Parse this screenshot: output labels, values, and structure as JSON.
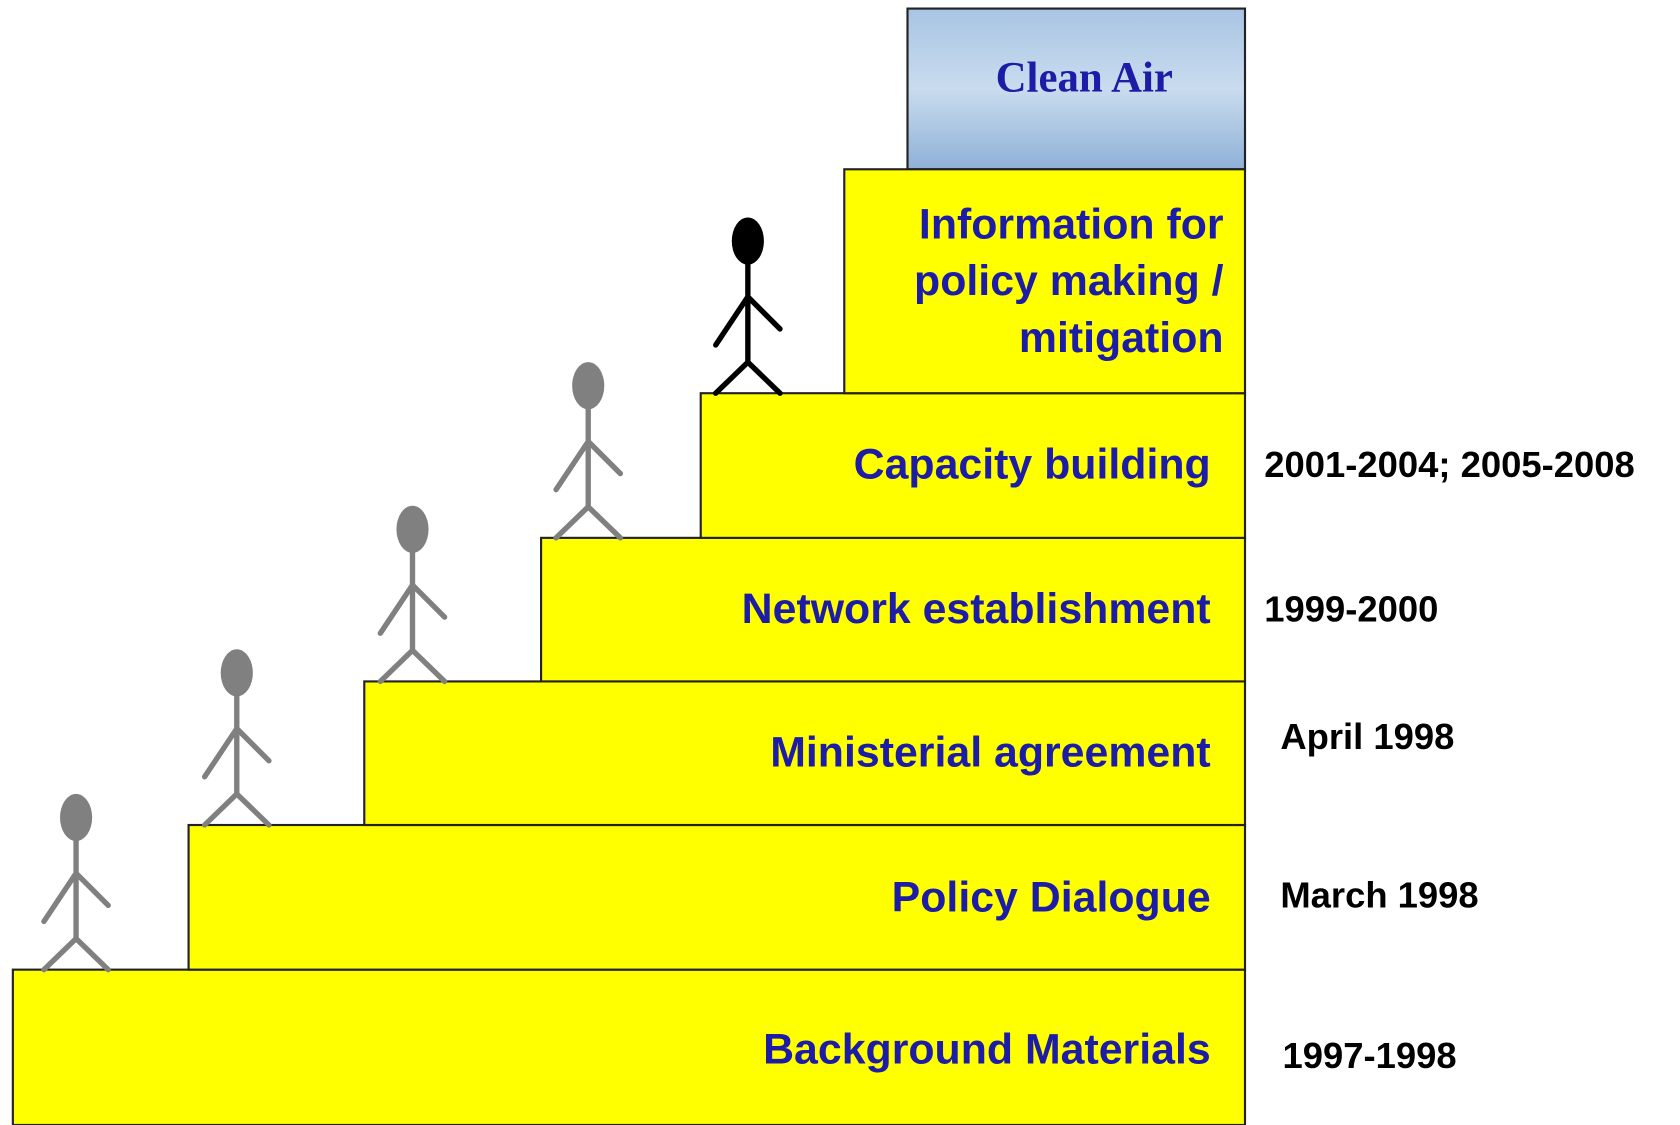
{
  "goal": {
    "label": "Clean Air"
  },
  "steps": [
    {
      "lines": [
        "Background Materials"
      ],
      "date": "1997-1998"
    },
    {
      "lines": [
        "Policy Dialogue"
      ],
      "date": "March 1998"
    },
    {
      "lines": [
        "Ministerial agreement"
      ],
      "date": "April 1998"
    },
    {
      "lines": [
        "Network establishment"
      ],
      "date": "1999-2000"
    },
    {
      "lines": [
        "Capacity building"
      ],
      "date": "2001-2004; 2005-2008"
    },
    {
      "lines": [
        "Information for",
        "policy making /",
        "mitigation"
      ]
    }
  ]
}
